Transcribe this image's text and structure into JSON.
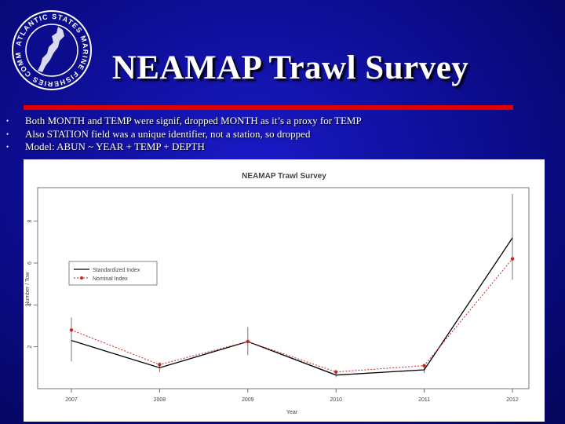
{
  "slide": {
    "title": "NEAMAP Trawl Survey",
    "logo_ring_text": "ATLANTIC STATES MARINE FISHERIES COMMISSION",
    "bullets": [
      "Both MONTH and TEMP were signif, dropped MONTH as it’s a proxy for TEMP",
      "Also STATION field was a unique identifier, not a station, so dropped",
      "Model: ABUN ~ YEAR + TEMP + DEPTH"
    ],
    "bullet_glyph": "•",
    "colors": {
      "background": "#0c0c8e",
      "rule": "#e00000",
      "title": "#ffffff"
    }
  },
  "chart_data": {
    "type": "line",
    "title": "NEAMAP Trawl Survey",
    "xlabel": "Year",
    "ylabel": "Number / Tow",
    "categories": [
      "2007",
      "2008",
      "2009",
      "2010",
      "2011",
      "2012"
    ],
    "yticks": [
      "2",
      "4",
      "6",
      "8"
    ],
    "ylim": [
      0,
      9.6
    ],
    "grid": false,
    "legend_position": "left",
    "series": [
      {
        "name": "Standardized Index",
        "values": [
          2.3,
          1.0,
          2.25,
          0.65,
          0.9,
          7.2
        ],
        "ci_low": [
          1.3,
          0.8,
          1.6,
          0.55,
          0.75,
          5.2
        ],
        "ci_high": [
          3.4,
          1.25,
          2.95,
          0.8,
          1.05,
          9.3
        ],
        "color": "#000000",
        "style": "solid"
      },
      {
        "name": "Nominal Index",
        "values": [
          2.8,
          1.15,
          2.25,
          0.8,
          1.1,
          6.2
        ],
        "color": "#cc2222",
        "style": "dotted"
      }
    ]
  }
}
